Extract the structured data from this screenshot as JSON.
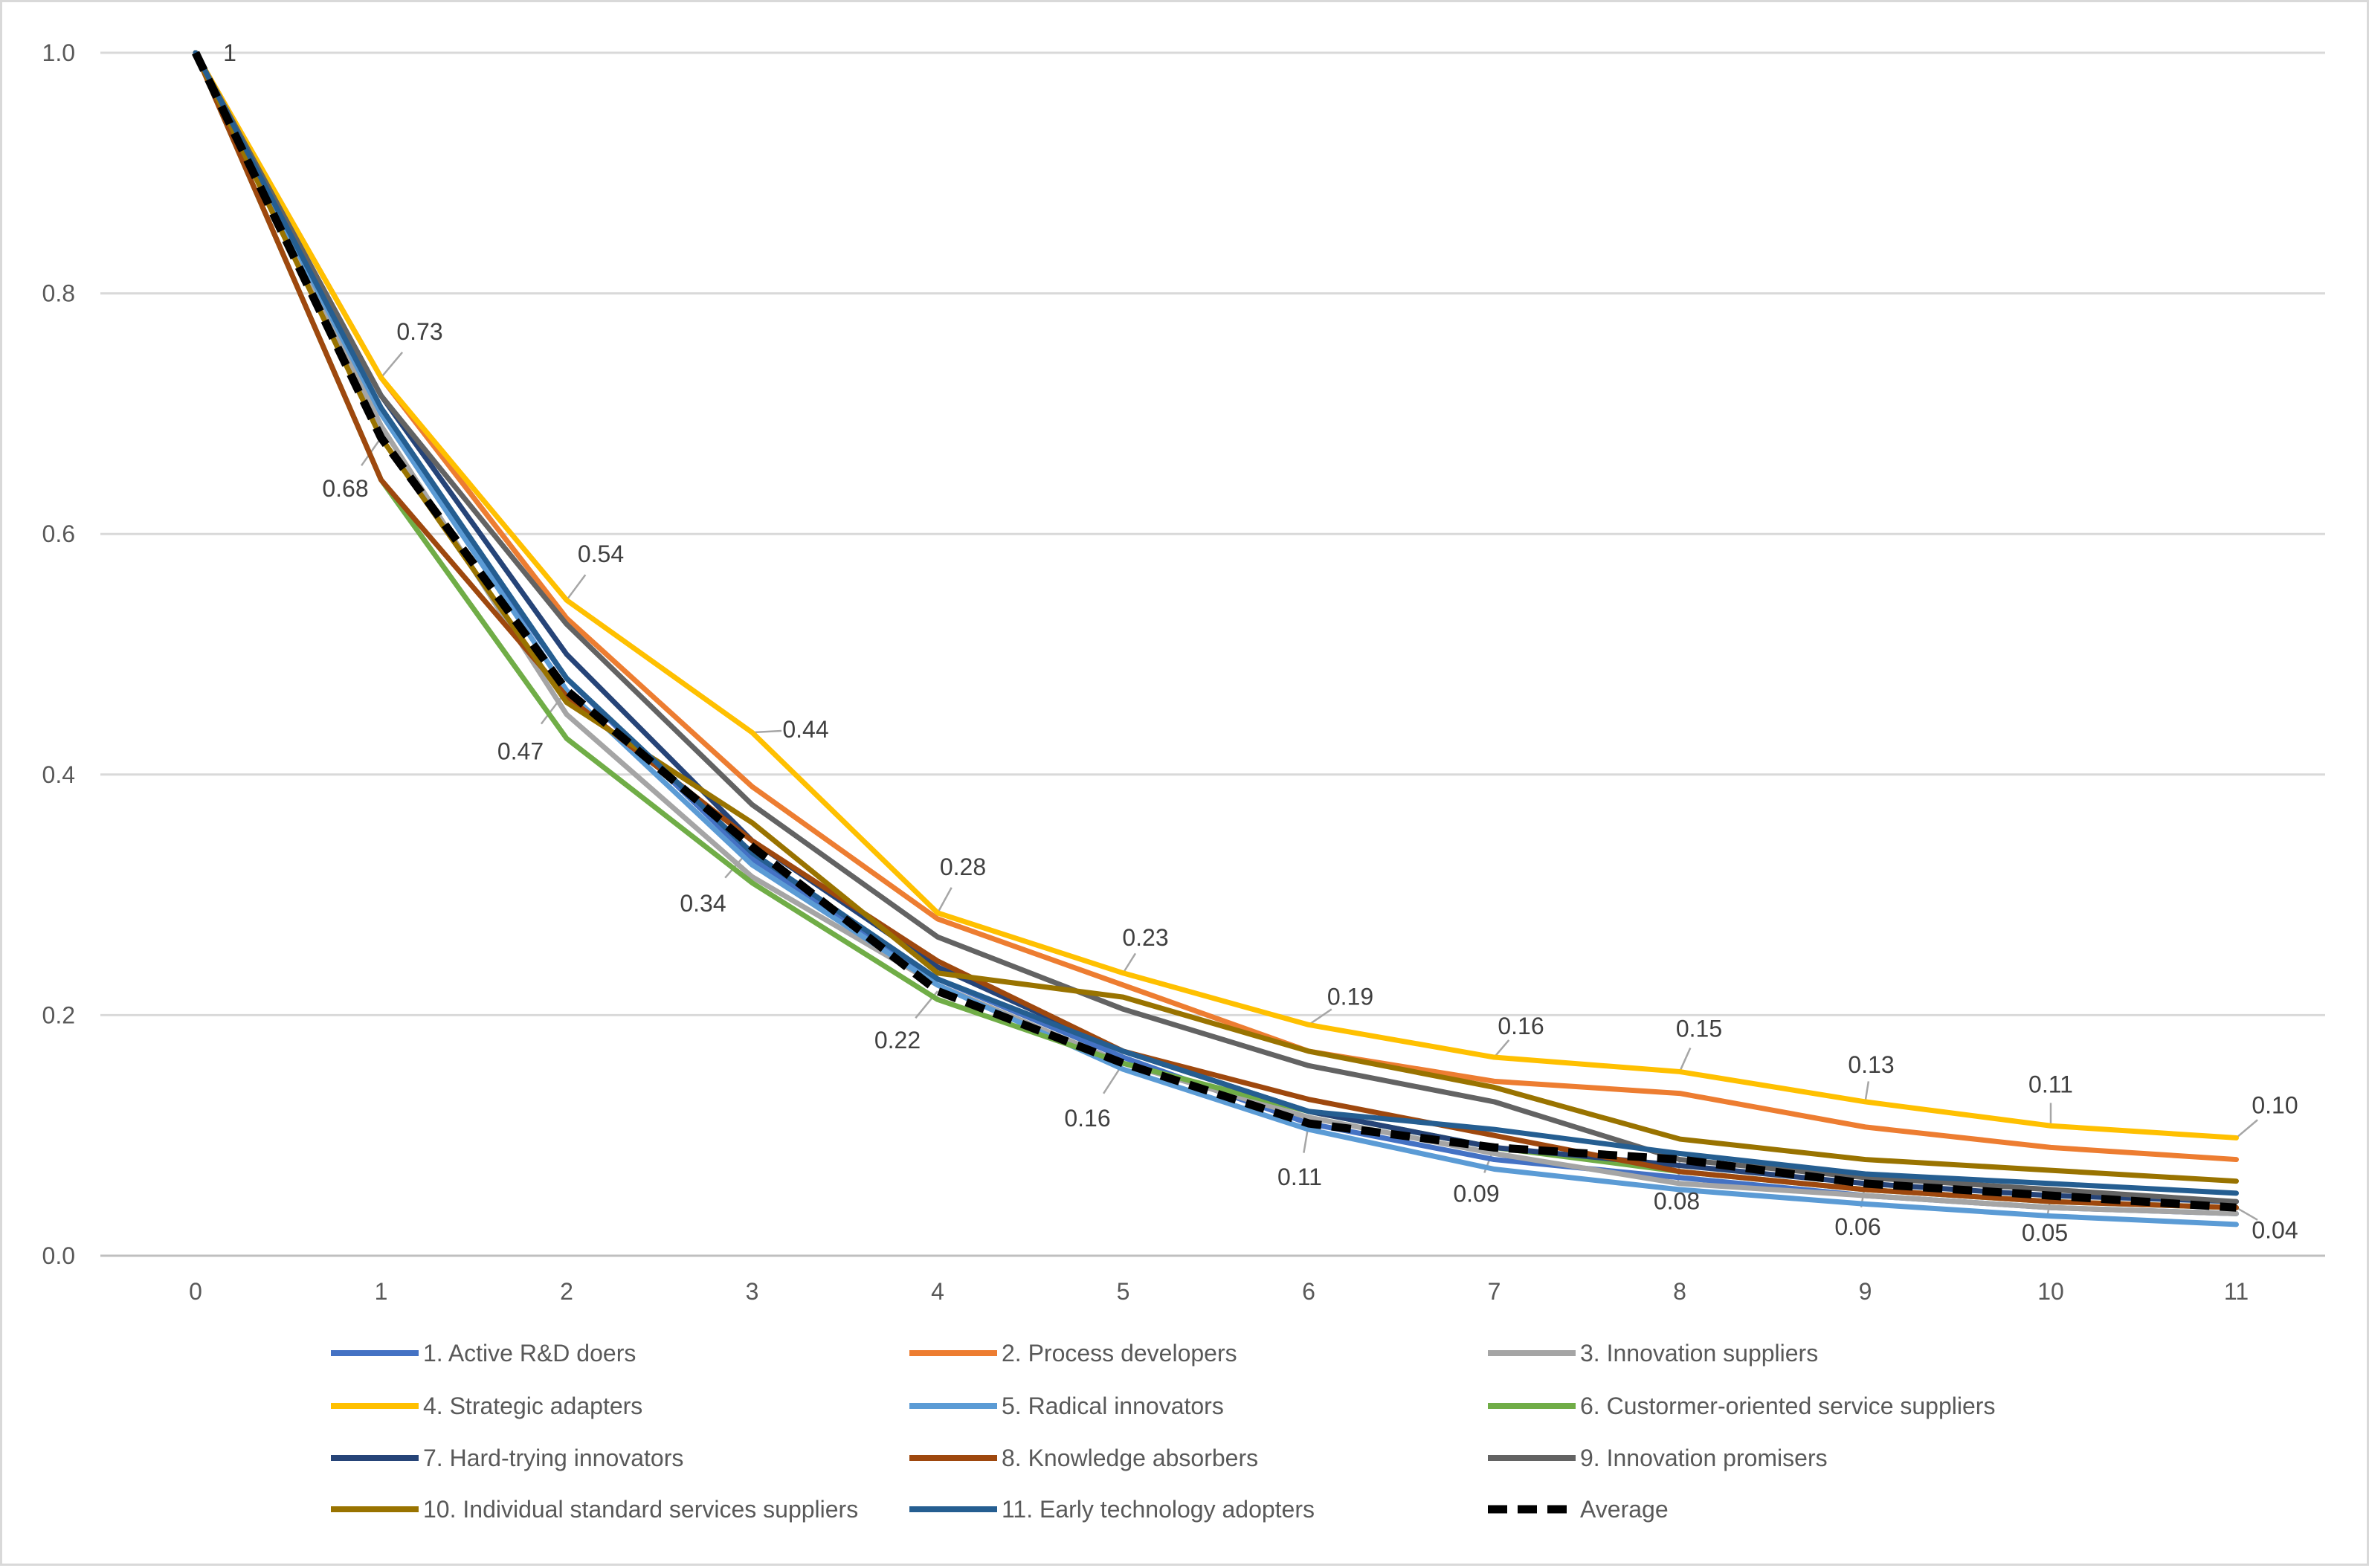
{
  "chart_data": {
    "type": "line",
    "title": "",
    "xlabel": "",
    "ylabel": "",
    "ylim": [
      0,
      1.0
    ],
    "y_ticks": [
      "0.0",
      "0.2",
      "0.4",
      "0.6",
      "0.8",
      "1.0"
    ],
    "categories": [
      "0",
      "1",
      "2",
      "3",
      "4",
      "5",
      "6",
      "7",
      "8",
      "9",
      "10",
      "11"
    ],
    "grid": "horizontal",
    "legend_position": "bottom",
    "series": [
      {
        "name": "1. Active R&D doers",
        "color": "#4472C4",
        "dash": false,
        "values": [
          1.0,
          0.7,
          0.48,
          0.33,
          0.23,
          0.165,
          0.11,
          0.08,
          0.065,
          0.05,
          0.04,
          0.035
        ]
      },
      {
        "name": "2. Process developers",
        "color": "#ED7D31",
        "dash": false,
        "values": [
          1.0,
          0.73,
          0.53,
          0.39,
          0.28,
          0.225,
          0.17,
          0.145,
          0.135,
          0.107,
          0.09,
          0.08
        ]
      },
      {
        "name": "3. Innovation suppliers",
        "color": "#A5A5A5",
        "dash": false,
        "values": [
          1.0,
          0.69,
          0.45,
          0.315,
          0.225,
          0.16,
          0.115,
          0.085,
          0.06,
          0.05,
          0.04,
          0.035
        ]
      },
      {
        "name": "4. Strategic adapters",
        "color": "#FFC000",
        "dash": false,
        "values": [
          1.0,
          0.73,
          0.545,
          0.435,
          0.285,
          0.235,
          0.192,
          0.165,
          0.153,
          0.128,
          0.108,
          0.098
        ]
      },
      {
        "name": "5. Radical innovators",
        "color": "#5B9BD5",
        "dash": false,
        "values": [
          1.0,
          0.7,
          0.47,
          0.325,
          0.225,
          0.155,
          0.105,
          0.072,
          0.055,
          0.043,
          0.033,
          0.026
        ]
      },
      {
        "name": "6. Custormer-oriented service suppliers",
        "color": "#70AD47",
        "dash": false,
        "values": [
          1.0,
          0.645,
          0.43,
          0.31,
          0.213,
          0.16,
          0.12,
          0.09,
          0.07,
          0.055,
          0.045,
          0.04
        ]
      },
      {
        "name": "7. Hard-trying innovators",
        "color": "#264478",
        "dash": false,
        "values": [
          1.0,
          0.715,
          0.5,
          0.345,
          0.24,
          0.17,
          0.12,
          0.09,
          0.075,
          0.06,
          0.05,
          0.045
        ]
      },
      {
        "name": "8. Knowledge absorbers",
        "color": "#9E480E",
        "dash": false,
        "values": [
          1.0,
          0.645,
          0.465,
          0.345,
          0.245,
          0.17,
          0.13,
          0.1,
          0.07,
          0.055,
          0.045,
          0.04
        ]
      },
      {
        "name": "9. Innovation promisers",
        "color": "#636363",
        "dash": false,
        "values": [
          1.0,
          0.715,
          0.525,
          0.375,
          0.265,
          0.205,
          0.158,
          0.128,
          0.08,
          0.065,
          0.055,
          0.045
        ]
      },
      {
        "name": "10. Individual standard services suppliers",
        "color": "#997300",
        "dash": false,
        "values": [
          1.0,
          0.68,
          0.46,
          0.36,
          0.235,
          0.215,
          0.17,
          0.14,
          0.097,
          0.08,
          0.071,
          0.062
        ]
      },
      {
        "name": "11. Early technology adopters",
        "color": "#255E91",
        "dash": false,
        "values": [
          1.0,
          0.705,
          0.48,
          0.335,
          0.23,
          0.17,
          0.12,
          0.105,
          0.085,
          0.068,
          0.06,
          0.052
        ]
      },
      {
        "name": "Average",
        "color": "#000000",
        "dash": true,
        "values": [
          1.0,
          0.68,
          0.47,
          0.34,
          0.22,
          0.16,
          0.11,
          0.09,
          0.08,
          0.06,
          0.05,
          0.04
        ]
      }
    ],
    "annotations": [
      {
        "text": "1",
        "x": 0,
        "y": 1.0
      },
      {
        "text": "0.73",
        "x": 1,
        "y": 0.73
      },
      {
        "text": "0.68",
        "x": 1,
        "y": 0.68
      },
      {
        "text": "0.54",
        "x": 2,
        "y": 0.545
      },
      {
        "text": "0.47",
        "x": 2,
        "y": 0.47
      },
      {
        "text": "0.44",
        "x": 3,
        "y": 0.435
      },
      {
        "text": "0.34",
        "x": 3,
        "y": 0.34
      },
      {
        "text": "0.28",
        "x": 4,
        "y": 0.285
      },
      {
        "text": "0.22",
        "x": 4,
        "y": 0.22
      },
      {
        "text": "0.23",
        "x": 5,
        "y": 0.235
      },
      {
        "text": "0.16",
        "x": 5,
        "y": 0.16
      },
      {
        "text": "0.19",
        "x": 6,
        "y": 0.192
      },
      {
        "text": "0.11",
        "x": 6,
        "y": 0.11
      },
      {
        "text": "0.16",
        "x": 7,
        "y": 0.165
      },
      {
        "text": "0.09",
        "x": 7,
        "y": 0.09
      },
      {
        "text": "0.15",
        "x": 8,
        "y": 0.153
      },
      {
        "text": "0.08",
        "x": 8,
        "y": 0.08
      },
      {
        "text": "0.13",
        "x": 9,
        "y": 0.128
      },
      {
        "text": "0.06",
        "x": 9,
        "y": 0.06
      },
      {
        "text": "0.11",
        "x": 10,
        "y": 0.108
      },
      {
        "text": "0.05",
        "x": 10,
        "y": 0.05
      },
      {
        "text": "0.10",
        "x": 11,
        "y": 0.098
      },
      {
        "text": "0.04",
        "x": 11,
        "y": 0.04
      }
    ]
  }
}
